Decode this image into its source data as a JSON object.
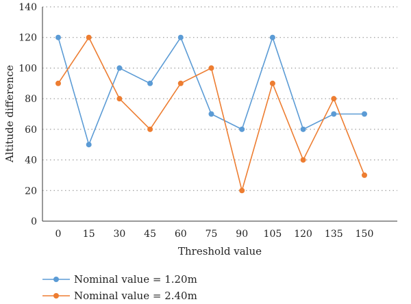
{
  "chart_data": {
    "type": "line",
    "title": "",
    "xlabel": "Threshold value",
    "ylabel": "Altitude difference",
    "categories": [
      "0",
      "15",
      "30",
      "45",
      "60",
      "75",
      "90",
      "105",
      "120",
      "135",
      "150"
    ],
    "ylim": [
      0,
      140
    ],
    "yticks": [
      "0",
      "20",
      "40",
      "60",
      "80",
      "100",
      "120",
      "140"
    ],
    "grid": "horizontal dotted",
    "legend_position": "bottom-left",
    "series": [
      {
        "name": "Nominal value = 1.20m",
        "color": "#5b9bd5",
        "values": [
          120,
          50,
          100,
          90,
          120,
          70,
          60,
          120,
          60,
          70,
          70
        ]
      },
      {
        "name": "Nominal value = 2.40m",
        "color": "#ed7d31",
        "values": [
          90,
          120,
          80,
          60,
          90,
          100,
          20,
          90,
          40,
          80,
          30
        ]
      }
    ]
  }
}
